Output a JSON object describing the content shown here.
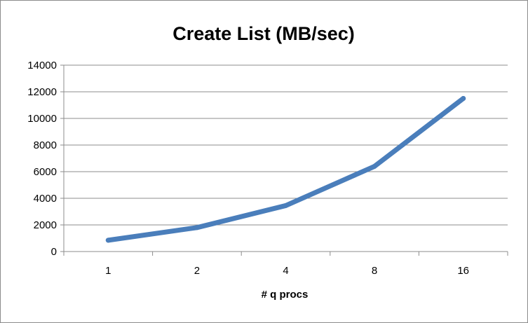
{
  "chart_data": {
    "type": "line",
    "title": "Create List (MB/sec)",
    "xlabel": "# q procs",
    "ylabel": "",
    "categories": [
      "1",
      "2",
      "4",
      "8",
      "16"
    ],
    "series": [
      {
        "values": [
          850,
          1800,
          3450,
          6400,
          11500
        ],
        "color": "#4a7ebb"
      }
    ],
    "ylim": [
      0,
      14000
    ],
    "yticks": [
      0,
      2000,
      4000,
      6000,
      8000,
      10000,
      12000,
      14000
    ],
    "grid": true,
    "legend": "none"
  }
}
